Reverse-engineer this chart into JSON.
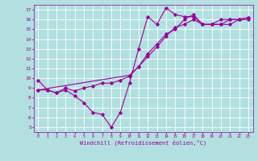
{
  "title": "",
  "xlabel": "Windchill (Refroidissement éolien,°C)",
  "background_color": "#b2e0e0",
  "grid_color": "#ffffff",
  "line_color": "#990099",
  "line_width": 0.8,
  "marker": "D",
  "marker_size": 1.8,
  "ylim": [
    4.5,
    17.5
  ],
  "xlim": [
    -0.5,
    23.5
  ],
  "yticks": [
    5,
    6,
    7,
    8,
    9,
    10,
    11,
    12,
    13,
    14,
    15,
    16,
    17
  ],
  "xticks": [
    0,
    1,
    2,
    3,
    4,
    5,
    6,
    7,
    8,
    9,
    10,
    11,
    12,
    13,
    14,
    15,
    16,
    17,
    18,
    19,
    20,
    21,
    22,
    23
  ],
  "lines": [
    {
      "x": [
        0,
        1,
        2,
        3,
        4,
        5,
        6,
        7,
        8,
        9,
        10,
        11,
        12,
        13,
        14,
        15,
        16,
        17,
        18,
        19,
        20,
        21,
        22,
        23
      ],
      "y": [
        9.8,
        8.8,
        8.5,
        8.8,
        8.2,
        7.5,
        6.5,
        6.3,
        5.0,
        6.5,
        9.5,
        13.0,
        16.3,
        15.5,
        17.2,
        16.5,
        16.3,
        16.3,
        15.5,
        15.5,
        16.0,
        16.0,
        16.0,
        16.0
      ]
    },
    {
      "x": [
        0,
        1,
        2,
        3,
        4,
        5,
        6,
        7,
        8,
        9,
        10,
        11,
        12,
        13,
        14,
        15,
        16,
        17,
        18,
        19,
        20,
        21,
        22,
        23
      ],
      "y": [
        8.8,
        8.8,
        8.5,
        9.0,
        8.7,
        9.0,
        9.2,
        9.5,
        9.5,
        9.8,
        10.2,
        11.2,
        12.5,
        13.5,
        14.5,
        15.0,
        16.0,
        16.5,
        15.5,
        15.5,
        15.5,
        16.0,
        16.0,
        16.2
      ]
    },
    {
      "x": [
        0,
        10,
        11,
        12,
        13,
        14,
        15,
        16,
        17,
        18,
        19,
        20,
        21,
        22,
        23
      ],
      "y": [
        8.8,
        10.3,
        11.2,
        12.2,
        13.2,
        14.3,
        15.2,
        15.5,
        16.0,
        15.5,
        15.5,
        15.5,
        15.5,
        16.0,
        16.2
      ]
    }
  ]
}
